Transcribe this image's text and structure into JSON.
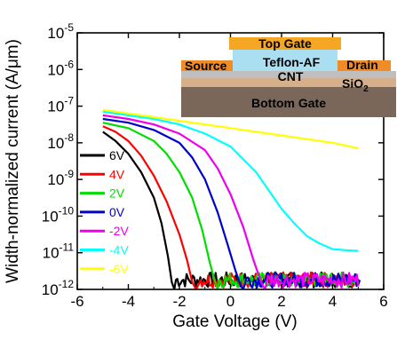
{
  "chart_data": {
    "type": "line",
    "title": "",
    "xlabel": "Gate Voltage (V)",
    "ylabel": "Width-normalized current (A/μm)",
    "xlim": [
      -6,
      6
    ],
    "ylim_exp": [
      -12,
      -5
    ],
    "y_scale": "log",
    "x_ticks": [
      "-6",
      "-4",
      "-2",
      "0",
      "2",
      "4",
      "6"
    ],
    "y_ticks": [
      {
        "base": "10",
        "exp": "-5"
      },
      {
        "base": "10",
        "exp": "-6"
      },
      {
        "base": "10",
        "exp": "-7"
      },
      {
        "base": "10",
        "exp": "-8"
      },
      {
        "base": "10",
        "exp": "-9"
      },
      {
        "base": "10",
        "exp": "-10"
      },
      {
        "base": "10",
        "exp": "-11"
      },
      {
        "base": "10",
        "exp": "-12"
      }
    ],
    "legend_position": "lower-left",
    "series": [
      {
        "name": "6V",
        "color": "#000000",
        "points": [
          [
            -5,
            -7.7
          ],
          [
            -4.5,
            -7.95
          ],
          [
            -4,
            -8.3
          ],
          [
            -3.5,
            -8.8
          ],
          [
            -3,
            -9.5
          ],
          [
            -2.7,
            -10.2
          ],
          [
            -2.45,
            -11.1
          ],
          [
            -2.3,
            -11.8
          ],
          [
            -2.2,
            -12
          ]
        ]
      },
      {
        "name": "4V",
        "color": "#ff0000",
        "points": [
          [
            -5,
            -7.55
          ],
          [
            -4.5,
            -7.7
          ],
          [
            -4,
            -7.95
          ],
          [
            -3.5,
            -8.35
          ],
          [
            -3,
            -8.9
          ],
          [
            -2.5,
            -9.6
          ],
          [
            -2,
            -10.5
          ],
          [
            -1.7,
            -11.2
          ],
          [
            -1.5,
            -11.8
          ],
          [
            -1.35,
            -12
          ]
        ]
      },
      {
        "name": "2V",
        "color": "#00dd00",
        "points": [
          [
            -5,
            -7.45
          ],
          [
            -4,
            -7.6
          ],
          [
            -3,
            -7.95
          ],
          [
            -2.5,
            -8.3
          ],
          [
            -2,
            -8.8
          ],
          [
            -1.5,
            -9.5
          ],
          [
            -1.1,
            -10.4
          ],
          [
            -0.8,
            -11.3
          ],
          [
            -0.6,
            -11.8
          ],
          [
            -0.5,
            -12
          ]
        ]
      },
      {
        "name": "0V",
        "color": "#0000cc",
        "points": [
          [
            -5,
            -7.35
          ],
          [
            -4,
            -7.45
          ],
          [
            -3,
            -7.65
          ],
          [
            -2,
            -8
          ],
          [
            -1.5,
            -8.4
          ],
          [
            -1,
            -9
          ],
          [
            -0.5,
            -9.9
          ],
          [
            -0.1,
            -10.8
          ],
          [
            0.2,
            -11.5
          ],
          [
            0.4,
            -11.9
          ],
          [
            0.5,
            -12
          ]
        ]
      },
      {
        "name": "-2V",
        "color": "#ee00ee",
        "points": [
          [
            -5,
            -7.25
          ],
          [
            -4,
            -7.35
          ],
          [
            -3,
            -7.5
          ],
          [
            -2,
            -7.75
          ],
          [
            -1,
            -8.2
          ],
          [
            -0.5,
            -8.7
          ],
          [
            0,
            -9.4
          ],
          [
            0.5,
            -10.3
          ],
          [
            0.9,
            -11.2
          ],
          [
            1.2,
            -11.8
          ],
          [
            1.35,
            -12
          ]
        ]
      },
      {
        "name": "-4V",
        "color": "#00ffff",
        "points": [
          [
            -5,
            -7.15
          ],
          [
            -4,
            -7.25
          ],
          [
            -3,
            -7.35
          ],
          [
            -2,
            -7.5
          ],
          [
            -1,
            -7.75
          ],
          [
            0,
            -8.1
          ],
          [
            1,
            -8.8
          ],
          [
            1.5,
            -9.3
          ],
          [
            2,
            -9.8
          ],
          [
            2.5,
            -10.2
          ],
          [
            3,
            -10.55
          ],
          [
            3.5,
            -10.75
          ],
          [
            4,
            -10.9
          ],
          [
            4.5,
            -10.93
          ],
          [
            5,
            -10.95
          ]
        ]
      },
      {
        "name": "-6V",
        "color": "#ffff00",
        "points": [
          [
            -5,
            -7.1
          ],
          [
            -4,
            -7.2
          ],
          [
            -3,
            -7.3
          ],
          [
            -2,
            -7.4
          ],
          [
            -1,
            -7.5
          ],
          [
            0,
            -7.6
          ],
          [
            1,
            -7.7
          ],
          [
            2,
            -7.8
          ],
          [
            3,
            -7.9
          ],
          [
            4,
            -8
          ],
          [
            5,
            -8.15
          ]
        ]
      }
    ],
    "noise_floor_exp": -12
  },
  "inset": {
    "top_gate": "Top Gate",
    "source": "Source",
    "dielectric": "Teflon-AF",
    "drain": "Drain",
    "channel": "CNT",
    "oxide_base": "SiO",
    "oxide_sub": "2",
    "bottom_gate": "Bottom Gate",
    "colors": {
      "top_gate": "#f5a623",
      "teflon": "#a9dff0",
      "source_drain": "#f08c28",
      "cnt": "#bfbfbf",
      "sio2": "#d6b08a",
      "bottom_gate": "#7a675a"
    }
  }
}
